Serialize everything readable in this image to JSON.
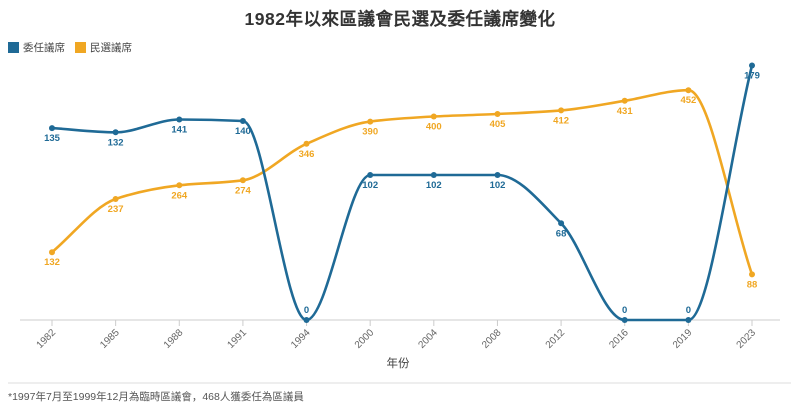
{
  "title": "1982年以來區議會民選及委任議席變化",
  "legend": {
    "items": [
      {
        "label": "委任議席",
        "color": "#1F6A96"
      },
      {
        "label": "民選議席",
        "color": "#F0A723"
      }
    ]
  },
  "footnote": "*1997年7月至1999年12月為臨時區議會，468人獲委任為區議員",
  "chart_data": {
    "type": "line",
    "title": "1982年以來區議會民選及委任議席變化",
    "x_categories": [
      "1982",
      "1985",
      "1988",
      "1991",
      "1994",
      "2000",
      "2004",
      "2008",
      "2012",
      "2016",
      "2019",
      "2023"
    ],
    "xlabel": "年份",
    "series": [
      {
        "name": "委任議席",
        "color": "#1F6A96",
        "values": [
          135,
          132,
          141,
          140,
          0,
          102,
          102,
          102,
          68,
          0,
          0,
          179
        ]
      },
      {
        "name": "民選議席",
        "color": "#F0A723",
        "values": [
          132,
          237,
          264,
          274,
          346,
          390,
          400,
          405,
          412,
          431,
          452,
          88
        ]
      }
    ],
    "curve": "smooth-monotone",
    "grid": false,
    "point_labels": "every point labeled; zero values labeled above the point, others below",
    "legend_position": "top-left"
  }
}
